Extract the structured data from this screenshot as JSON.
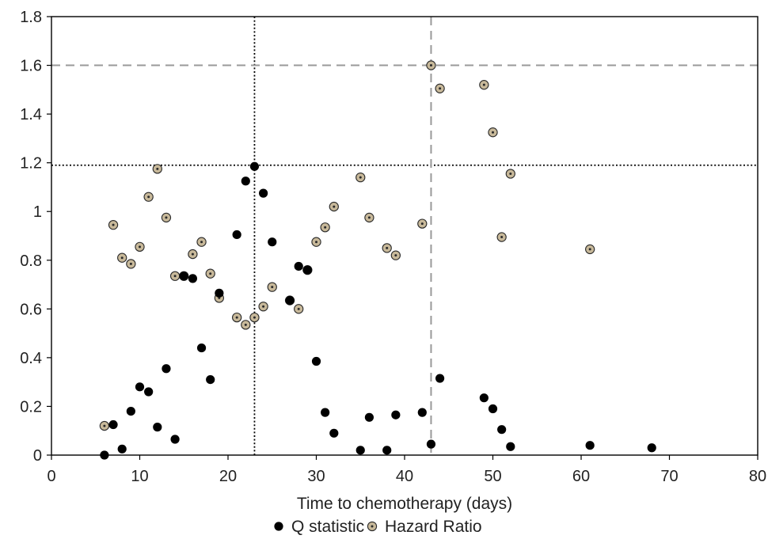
{
  "chart_data": {
    "type": "scatter",
    "title": "",
    "xlabel": "Time to chemotherapy (days)",
    "ylabel": "",
    "xlim": [
      0,
      80
    ],
    "ylim": [
      0,
      1.8
    ],
    "x_ticks": [
      0,
      10,
      20,
      30,
      40,
      50,
      60,
      70,
      80
    ],
    "y_ticks": [
      0,
      0.2,
      0.4,
      0.6,
      0.8,
      1,
      1.2,
      1.4,
      1.6,
      1.8
    ],
    "grid": false,
    "legend_position": "bottom",
    "series": [
      {
        "name": "Q statistic",
        "marker": "filled-circle",
        "color": "#000000",
        "x": [
          6,
          7,
          8,
          9,
          10,
          11,
          12,
          13,
          14,
          15,
          16,
          17,
          18,
          19,
          21,
          22,
          23,
          24,
          25,
          27,
          28,
          29,
          30,
          31,
          32,
          35,
          36,
          38,
          39,
          42,
          43,
          44,
          49,
          50,
          51,
          52,
          61,
          68
        ],
        "y": [
          0.0,
          0.125,
          0.025,
          0.18,
          0.28,
          0.26,
          0.115,
          0.355,
          0.065,
          0.735,
          0.725,
          0.44,
          0.31,
          0.665,
          0.905,
          1.125,
          1.185,
          1.075,
          0.875,
          0.635,
          0.775,
          0.76,
          0.385,
          0.175,
          0.09,
          0.02,
          0.155,
          0.02,
          0.165,
          0.175,
          0.045,
          0.315,
          0.235,
          0.19,
          0.105,
          0.035,
          0.04,
          0.03
        ]
      },
      {
        "name": "Hazard Ratio",
        "marker": "open-circle-with-dot",
        "color": "#c8b99a",
        "x": [
          6,
          7,
          8,
          9,
          10,
          11,
          12,
          13,
          14,
          15,
          16,
          17,
          18,
          19,
          21,
          22,
          23,
          24,
          25,
          27,
          28,
          29,
          30,
          31,
          32,
          35,
          36,
          38,
          39,
          42,
          43,
          44,
          49,
          50,
          51,
          52,
          61
        ],
        "y": [
          0.12,
          0.945,
          0.81,
          0.785,
          0.855,
          1.06,
          1.175,
          0.975,
          0.735,
          0.735,
          0.825,
          0.875,
          0.745,
          0.645,
          0.565,
          0.535,
          0.565,
          0.61,
          0.69,
          0.635,
          0.6,
          0.76,
          0.875,
          0.935,
          1.02,
          1.14,
          0.975,
          0.85,
          0.82,
          0.95,
          1.6,
          1.505,
          1.52,
          1.325,
          0.895,
          1.155,
          0.845
        ]
      }
    ],
    "reference_lines": [
      {
        "orientation": "vertical",
        "value": 23,
        "style": "dotted",
        "color": "#000000"
      },
      {
        "orientation": "horizontal",
        "value": 1.19,
        "style": "dotted",
        "color": "#000000"
      },
      {
        "orientation": "vertical",
        "value": 43,
        "style": "dashed",
        "color": "#999999"
      },
      {
        "orientation": "horizontal",
        "value": 1.6,
        "style": "dashed",
        "color": "#999999"
      }
    ]
  }
}
